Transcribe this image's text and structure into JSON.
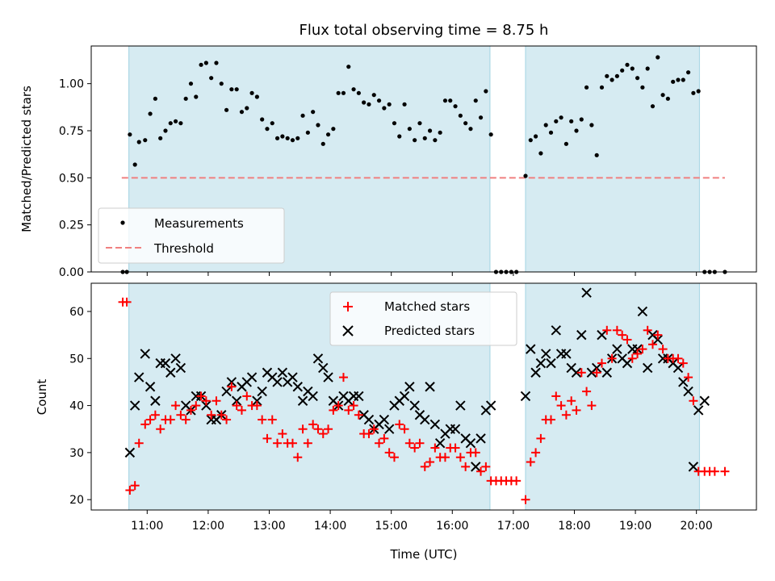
{
  "chart_data": [
    {
      "type": "scatter",
      "title": "Flux total observing time = 8.75 h",
      "xlabel": "",
      "ylabel": "Matched/Predicted stars",
      "ylim": [
        0,
        1.2
      ],
      "yticks": [
        "0.00",
        "0.25",
        "0.50",
        "0.75",
        "1.00"
      ],
      "ytick_values": [
        0,
        0.25,
        0.5,
        0.75,
        1.0
      ],
      "xlim": [
        "10:05",
        "20:59"
      ],
      "xtick_values": [
        "11:00",
        "12:00",
        "13:00",
        "14:00",
        "15:00",
        "16:00",
        "17:00",
        "18:00",
        "19:00",
        "20:00"
      ],
      "shaded_spans": [
        [
          "10:42",
          "16:37"
        ],
        [
          "17:12",
          "20:03"
        ]
      ],
      "threshold": {
        "value": 0.5,
        "x_range": [
          "10:35",
          "20:28"
        ],
        "color": "#f08080"
      },
      "legend_position": "lower-left",
      "series": [
        {
          "name": "Measurements",
          "marker": "dot",
          "color": "#000000",
          "x": [
            "10:36",
            "10:40",
            "10:43",
            "10:48",
            "10:52",
            "10:58",
            "11:03",
            "11:08",
            "11:13",
            "11:18",
            "11:23",
            "11:28",
            "11:33",
            "11:38",
            "11:43",
            "11:48",
            "11:53",
            "11:58",
            "12:03",
            "12:08",
            "12:13",
            "12:18",
            "12:23",
            "12:28",
            "12:33",
            "12:38",
            "12:43",
            "12:48",
            "12:53",
            "12:58",
            "13:03",
            "13:08",
            "13:13",
            "13:18",
            "13:23",
            "13:28",
            "13:33",
            "13:38",
            "13:43",
            "13:48",
            "13:53",
            "13:58",
            "14:03",
            "14:08",
            "14:13",
            "14:18",
            "14:23",
            "14:28",
            "14:33",
            "14:38",
            "14:43",
            "14:48",
            "14:53",
            "14:58",
            "15:03",
            "15:08",
            "15:13",
            "15:18",
            "15:23",
            "15:28",
            "15:33",
            "15:38",
            "15:43",
            "15:48",
            "15:53",
            "15:58",
            "16:03",
            "16:08",
            "16:13",
            "16:18",
            "16:23",
            "16:28",
            "16:33",
            "16:38",
            "16:43",
            "16:48",
            "16:53",
            "16:58",
            "17:03",
            "17:12",
            "17:17",
            "17:22",
            "17:27",
            "17:32",
            "17:37",
            "17:42",
            "17:47",
            "17:52",
            "17:57",
            "18:02",
            "18:07",
            "18:12",
            "18:17",
            "18:22",
            "18:27",
            "18:32",
            "18:37",
            "18:42",
            "18:47",
            "18:52",
            "18:57",
            "19:02",
            "19:07",
            "19:12",
            "19:17",
            "19:22",
            "19:27",
            "19:32",
            "19:37",
            "19:42",
            "19:47",
            "19:52",
            "19:57",
            "20:02",
            "20:08",
            "20:13",
            "20:18",
            "20:28"
          ],
          "y": [
            0,
            0,
            0.73,
            0.57,
            0.69,
            0.7,
            0.84,
            0.92,
            0.71,
            0.75,
            0.79,
            0.8,
            0.79,
            0.92,
            1.0,
            0.93,
            1.1,
            1.11,
            1.03,
            1.11,
            1.0,
            0.86,
            0.97,
            0.97,
            0.85,
            0.87,
            0.95,
            0.93,
            0.81,
            0.76,
            0.79,
            0.71,
            0.72,
            0.71,
            0.7,
            0.71,
            0.83,
            0.74,
            0.85,
            0.78,
            0.68,
            0.73,
            0.76,
            0.95,
            0.95,
            1.09,
            0.97,
            0.95,
            0.9,
            0.89,
            0.94,
            0.91,
            0.87,
            0.89,
            0.79,
            0.72,
            0.89,
            0.76,
            0.7,
            0.79,
            0.71,
            0.75,
            0.7,
            0.74,
            0.91,
            0.91,
            0.88,
            0.83,
            0.79,
            0.76,
            0.91,
            0.82,
            0.96,
            0.73,
            0,
            0,
            0,
            0,
            0,
            0.51,
            0.7,
            0.72,
            0.63,
            0.78,
            0.74,
            0.8,
            0.82,
            0.68,
            0.8,
            0.75,
            0.81,
            0.98,
            0.78,
            0.62,
            0.98,
            1.04,
            1.02,
            1.04,
            1.07,
            1.1,
            1.08,
            1.03,
            0.98,
            1.08,
            0.88,
            1.14,
            0.94,
            0.92,
            1.01,
            1.02,
            1.02,
            1.06,
            0.95,
            0.96,
            0,
            0,
            0,
            0
          ]
        },
        {
          "name": "Threshold",
          "marker": "dashed-line",
          "color": "#f08080"
        }
      ]
    },
    {
      "type": "scatter",
      "title": "",
      "xlabel": "Time (UTC)",
      "ylabel": "Count",
      "ylim": [
        17.8,
        66
      ],
      "yticks": [
        "20",
        "30",
        "40",
        "50",
        "60"
      ],
      "ytick_values": [
        20,
        30,
        40,
        50,
        60
      ],
      "xlim": [
        "10:05",
        "20:59"
      ],
      "xticks": [
        "11:00",
        "12:00",
        "13:00",
        "14:00",
        "15:00",
        "16:00",
        "17:00",
        "18:00",
        "19:00",
        "20:00"
      ],
      "xtick_values": [
        "11:00",
        "12:00",
        "13:00",
        "14:00",
        "15:00",
        "16:00",
        "17:00",
        "18:00",
        "19:00",
        "20:00"
      ],
      "shaded_spans": [
        [
          "10:42",
          "16:37"
        ],
        [
          "17:12",
          "20:03"
        ]
      ],
      "legend_position": "upper-center",
      "series": [
        {
          "name": "Matched stars",
          "marker": "plus",
          "color": "#ff0000",
          "x": [
            "10:36",
            "10:40",
            "10:43",
            "10:48",
            "10:52",
            "10:58",
            "11:03",
            "11:08",
            "11:13",
            "11:18",
            "11:23",
            "11:28",
            "11:33",
            "11:38",
            "11:43",
            "11:48",
            "11:53",
            "11:58",
            "12:03",
            "12:08",
            "12:13",
            "12:18",
            "12:23",
            "12:28",
            "12:33",
            "12:38",
            "12:43",
            "12:48",
            "12:53",
            "12:58",
            "13:03",
            "13:08",
            "13:13",
            "13:18",
            "13:23",
            "13:28",
            "13:33",
            "13:38",
            "13:43",
            "13:48",
            "13:53",
            "13:58",
            "14:03",
            "14:08",
            "14:13",
            "14:18",
            "14:23",
            "14:28",
            "14:33",
            "14:38",
            "14:43",
            "14:48",
            "14:53",
            "14:58",
            "15:03",
            "15:08",
            "15:13",
            "15:18",
            "15:23",
            "15:28",
            "15:33",
            "15:38",
            "15:43",
            "15:48",
            "15:53",
            "15:58",
            "16:03",
            "16:08",
            "16:13",
            "16:18",
            "16:23",
            "16:28",
            "16:33",
            "16:38",
            "16:43",
            "16:48",
            "16:53",
            "16:58",
            "17:03",
            "17:12",
            "17:17",
            "17:22",
            "17:27",
            "17:32",
            "17:37",
            "17:42",
            "17:47",
            "17:52",
            "17:57",
            "18:02",
            "18:07",
            "18:12",
            "18:17",
            "18:22",
            "18:27",
            "18:32",
            "18:37",
            "18:42",
            "18:47",
            "18:52",
            "18:57",
            "19:02",
            "19:07",
            "19:12",
            "19:17",
            "19:22",
            "19:27",
            "19:32",
            "19:37",
            "19:42",
            "19:47",
            "19:52",
            "19:57",
            "20:02",
            "20:08",
            "20:13",
            "20:18",
            "20:28"
          ],
          "y": [
            62,
            62,
            22,
            23,
            32,
            36,
            37,
            38,
            35,
            37,
            37,
            40,
            38,
            37,
            39,
            40,
            42,
            41,
            38,
            41,
            38,
            37,
            44,
            40,
            39,
            42,
            40,
            40,
            37,
            33,
            37,
            32,
            34,
            32,
            32,
            29,
            35,
            32,
            36,
            35,
            34,
            35,
            39,
            40,
            46,
            39,
            40,
            38,
            34,
            34,
            35,
            32,
            33,
            30,
            29,
            36,
            35,
            32,
            31,
            32,
            27,
            28,
            31,
            29,
            29,
            31,
            31,
            29,
            27,
            30,
            30,
            26,
            27,
            24,
            24,
            24,
            24,
            24,
            24,
            20,
            28,
            30,
            33,
            37,
            37,
            42,
            40,
            38,
            41,
            39,
            47,
            43,
            40,
            47,
            49,
            56,
            50,
            56,
            55,
            54,
            50,
            51,
            52,
            56,
            53,
            55,
            52,
            50,
            50,
            50,
            49,
            46,
            41,
            26,
            26,
            26,
            26,
            26
          ]
        },
        {
          "name": "Predicted stars",
          "marker": "x",
          "color": "#000000",
          "x": [
            "10:43",
            "10:48",
            "10:52",
            "10:58",
            "11:03",
            "11:08",
            "11:13",
            "11:18",
            "11:23",
            "11:28",
            "11:33",
            "11:38",
            "11:43",
            "11:48",
            "11:53",
            "11:58",
            "12:03",
            "12:08",
            "12:13",
            "12:18",
            "12:23",
            "12:28",
            "12:33",
            "12:38",
            "12:43",
            "12:48",
            "12:53",
            "12:58",
            "13:03",
            "13:08",
            "13:13",
            "13:18",
            "13:23",
            "13:28",
            "13:33",
            "13:38",
            "13:43",
            "13:48",
            "13:53",
            "13:58",
            "14:03",
            "14:08",
            "14:13",
            "14:18",
            "14:23",
            "14:28",
            "14:33",
            "14:38",
            "14:43",
            "14:48",
            "14:53",
            "14:58",
            "15:03",
            "15:08",
            "15:13",
            "15:18",
            "15:23",
            "15:28",
            "15:33",
            "15:38",
            "15:43",
            "15:48",
            "15:53",
            "15:58",
            "16:03",
            "16:08",
            "16:13",
            "16:18",
            "16:23",
            "16:28",
            "16:33",
            "16:38",
            "17:12",
            "17:17",
            "17:22",
            "17:27",
            "17:32",
            "17:37",
            "17:42",
            "17:47",
            "17:52",
            "17:57",
            "18:02",
            "18:07",
            "18:12",
            "18:17",
            "18:22",
            "18:27",
            "18:32",
            "18:37",
            "18:42",
            "18:47",
            "18:52",
            "18:57",
            "19:02",
            "19:07",
            "19:12",
            "19:17",
            "19:22",
            "19:27",
            "19:32",
            "19:37",
            "19:42",
            "19:47",
            "19:52",
            "19:57",
            "20:02",
            "20:08"
          ],
          "y": [
            30,
            40,
            46,
            51,
            44,
            41,
            49,
            49,
            47,
            50,
            48,
            40,
            39,
            42,
            42,
            40,
            37,
            37,
            38,
            43,
            45,
            41,
            44,
            45,
            46,
            41,
            43,
            47,
            46,
            45,
            47,
            45,
            46,
            44,
            41,
            43,
            42,
            50,
            48,
            46,
            41,
            40,
            42,
            41,
            42,
            42,
            38,
            37,
            35,
            36,
            37,
            35,
            40,
            41,
            42,
            44,
            40,
            38,
            37,
            44,
            36,
            32,
            34,
            35,
            35,
            40,
            33,
            32,
            27,
            33,
            39,
            40,
            42,
            52,
            47,
            49,
            51,
            49,
            56,
            51,
            51,
            48,
            47,
            55,
            64,
            47,
            48,
            55,
            47,
            50,
            52,
            50,
            49,
            52,
            52,
            60,
            48,
            55,
            54,
            50,
            50,
            49,
            48,
            45,
            43,
            27,
            39,
            41
          ]
        }
      ]
    }
  ]
}
